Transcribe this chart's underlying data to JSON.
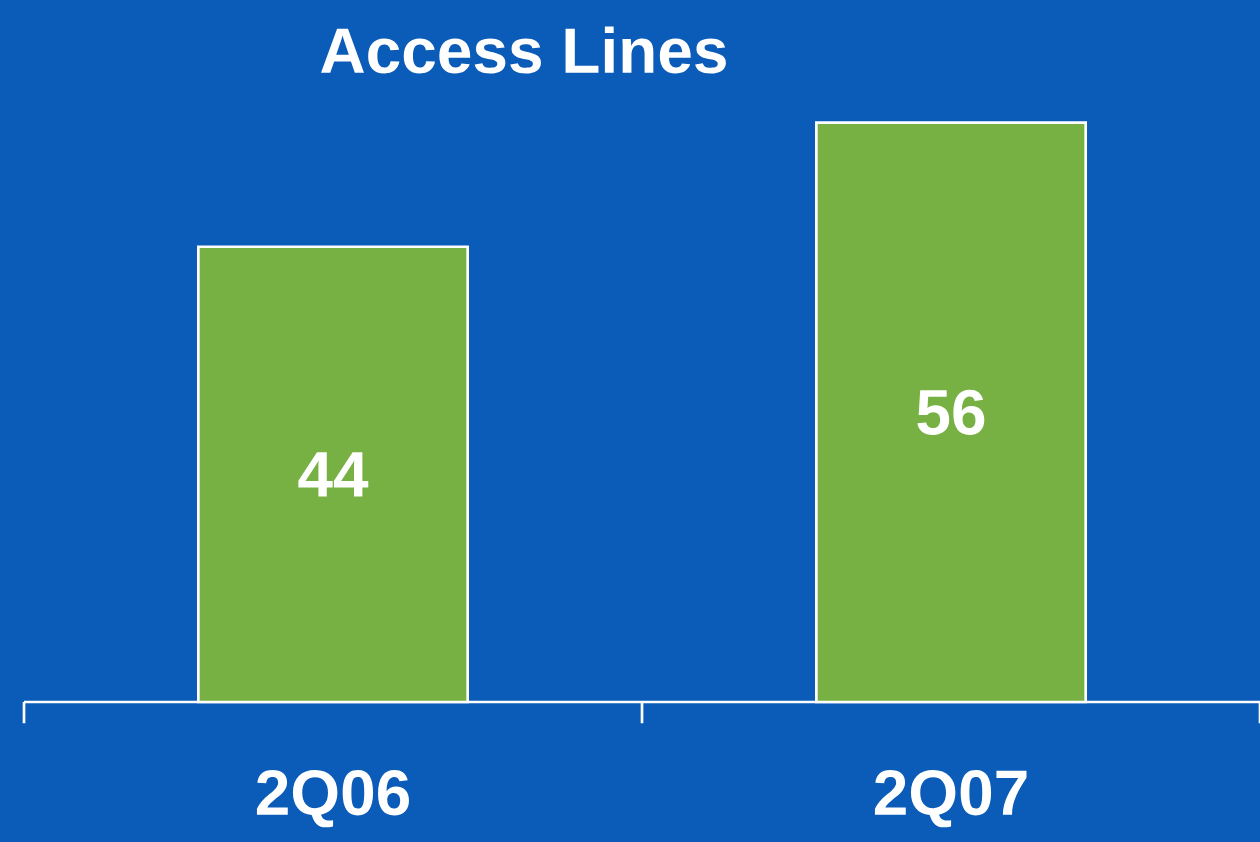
{
  "chart_data": {
    "type": "bar",
    "title": "Access Lines",
    "categories": [
      "2Q06",
      "2Q07"
    ],
    "values": [
      44,
      56
    ],
    "color": "#77b143",
    "data_labels": true
  }
}
